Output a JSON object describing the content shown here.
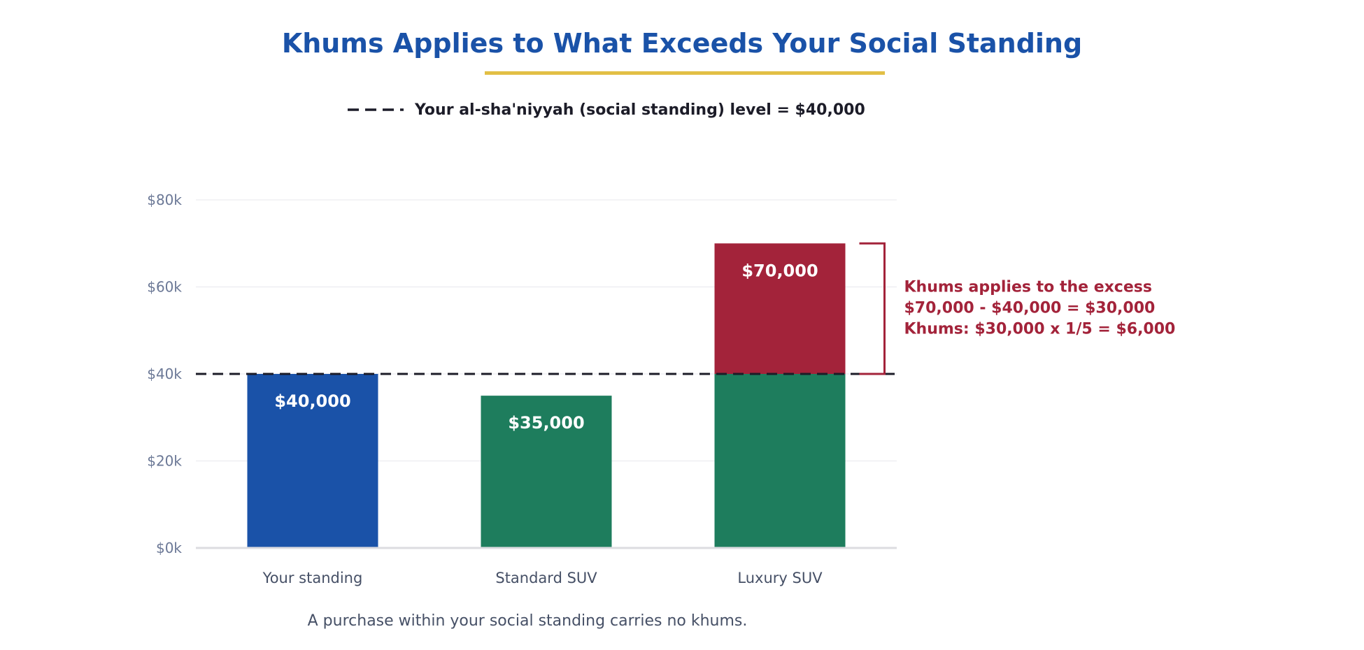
{
  "chart_data": {
    "type": "bar",
    "title": "Khums Applies to What Exceeds Your Social Standing",
    "categories": [
      "Your standing",
      "Standard SUV",
      "Luxury SUV"
    ],
    "series": [
      {
        "values": [
          40000,
          35000,
          40000
        ],
        "colors": [
          "#1a52a8",
          "#1e7d5d",
          "#1e7d5d"
        ]
      },
      {
        "values": [
          0,
          0,
          30000
        ],
        "colors": [
          "#a3233a",
          "#a3233a",
          "#a3233a"
        ]
      }
    ],
    "data_labels": [
      "$40,000",
      "$35,000",
      "$70,000"
    ],
    "ylim": [
      0,
      80000
    ],
    "y_ticks": [
      0,
      20000,
      40000,
      60000,
      80000
    ],
    "y_tick_labels": [
      "$0k",
      "$20k",
      "$40k",
      "$60k",
      "$80k"
    ],
    "grid": true,
    "reference_line": {
      "value": 40000,
      "style": "dashed",
      "legend_label": "Your al-sha'niyyah (social standing) level = $40,000"
    },
    "annotation": {
      "from": 40000,
      "to": 70000,
      "lines": [
        "Khums applies to the excess",
        "$70,000 - $40,000 = $30,000",
        "Khums: $30,000 x 1/5 = $6,000"
      ]
    },
    "caption": "A purchase within your social standing carries no khums.",
    "colors": {
      "title": "#1a52a8",
      "underline": "#e2bf45",
      "standing": "#1a52a8",
      "within": "#1e7d5d",
      "excess": "#a3233a",
      "axis_text": "#6b7896",
      "category_text": "#465066",
      "line": "#1c1c28"
    }
  }
}
